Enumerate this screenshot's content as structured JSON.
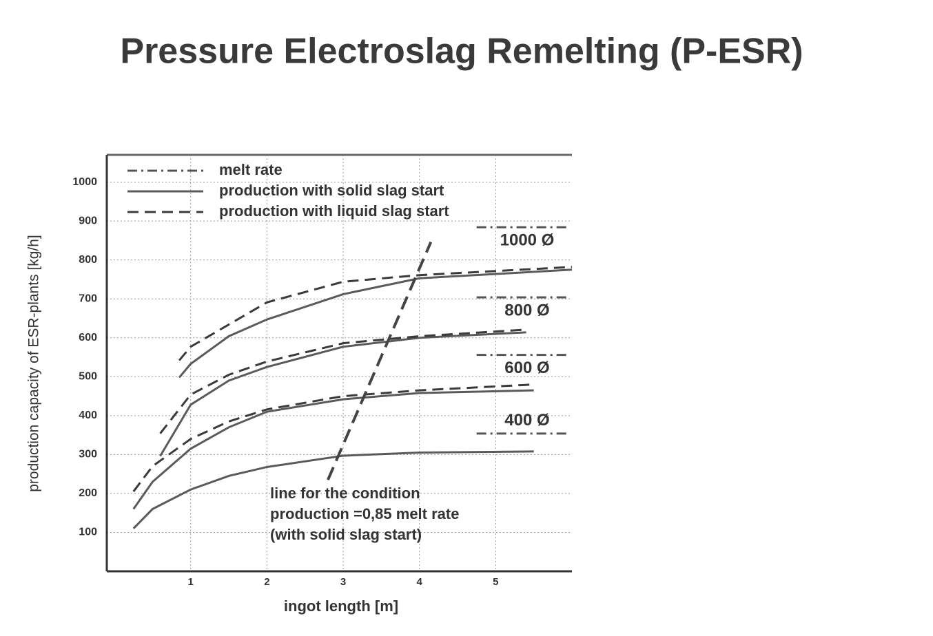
{
  "chart_data": {
    "type": "line",
    "title": "Pressure Electroslag Remelting (P-ESR)",
    "x_label": "ingot length [m]",
    "y_label": "production capacity of ESR-plants [kg/h]",
    "xlim": [
      -0.1,
      6
    ],
    "ylim": [
      0,
      1070
    ],
    "xticks": [
      1,
      2,
      3,
      4,
      5
    ],
    "yticks": [
      100,
      200,
      300,
      400,
      500,
      600,
      700,
      800,
      900,
      1000
    ],
    "grid": true,
    "legend": [
      {
        "name": "melt rate",
        "dash": "14 6 3 6",
        "color": "#555555"
      },
      {
        "name": "production with solid slag start",
        "dash": "",
        "color": "#5a5a5a"
      },
      {
        "name": "production with liquid slag start",
        "dash": "16 9",
        "color": "#3a3a3a"
      }
    ],
    "melt_rate_x": [
      4.75,
      5.97
    ],
    "diameters": [
      {
        "label": "1000 Ø",
        "melt_rate": 884,
        "solid": {
          "x": [
            0.85,
            1,
            1.5,
            2,
            3,
            4,
            6
          ],
          "values": [
            498,
            533,
            604,
            647,
            712,
            753,
            775
          ]
        },
        "liquid": {
          "x": [
            0.85,
            1,
            2,
            3,
            4,
            6
          ],
          "values": [
            542,
            577,
            691,
            744,
            761,
            782
          ]
        }
      },
      {
        "label": "800 Ø",
        "melt_rate": 704,
        "solid": {
          "x": [
            0.6,
            1,
            1.5,
            2,
            3,
            4,
            5.4
          ],
          "values": [
            296,
            428,
            490,
            525,
            577,
            600,
            614
          ]
        },
        "liquid": {
          "x": [
            0.6,
            1,
            1.5,
            2,
            3,
            4,
            5.4
          ],
          "values": [
            354,
            454,
            505,
            539,
            586,
            604,
            621
          ]
        }
      },
      {
        "label": "600 Ø",
        "melt_rate": 556,
        "solid": {
          "x": [
            0.25,
            0.5,
            1,
            1.5,
            2,
            3,
            4,
            5.5
          ],
          "values": [
            160,
            230,
            315,
            370,
            410,
            442,
            458,
            465
          ]
        },
        "liquid": {
          "x": [
            0.25,
            0.5,
            1,
            1.5,
            2,
            3,
            4,
            5.5
          ],
          "values": [
            205,
            270,
            340,
            385,
            416,
            450,
            465,
            480
          ]
        }
      },
      {
        "label": "400 Ø",
        "melt_rate": 354,
        "solid": {
          "x": [
            0.25,
            0.5,
            1,
            1.5,
            2,
            3,
            4,
            5.5
          ],
          "values": [
            110,
            160,
            210,
            245,
            268,
            297,
            305,
            308
          ]
        }
      }
    ],
    "condition_line": {
      "x": [
        2.8,
        4.15
      ],
      "values": [
        235,
        846
      ],
      "color": "#444444",
      "label": [
        "line for the condition",
        "production =0,85 melt rate",
        "(with solid slag start)"
      ]
    }
  }
}
